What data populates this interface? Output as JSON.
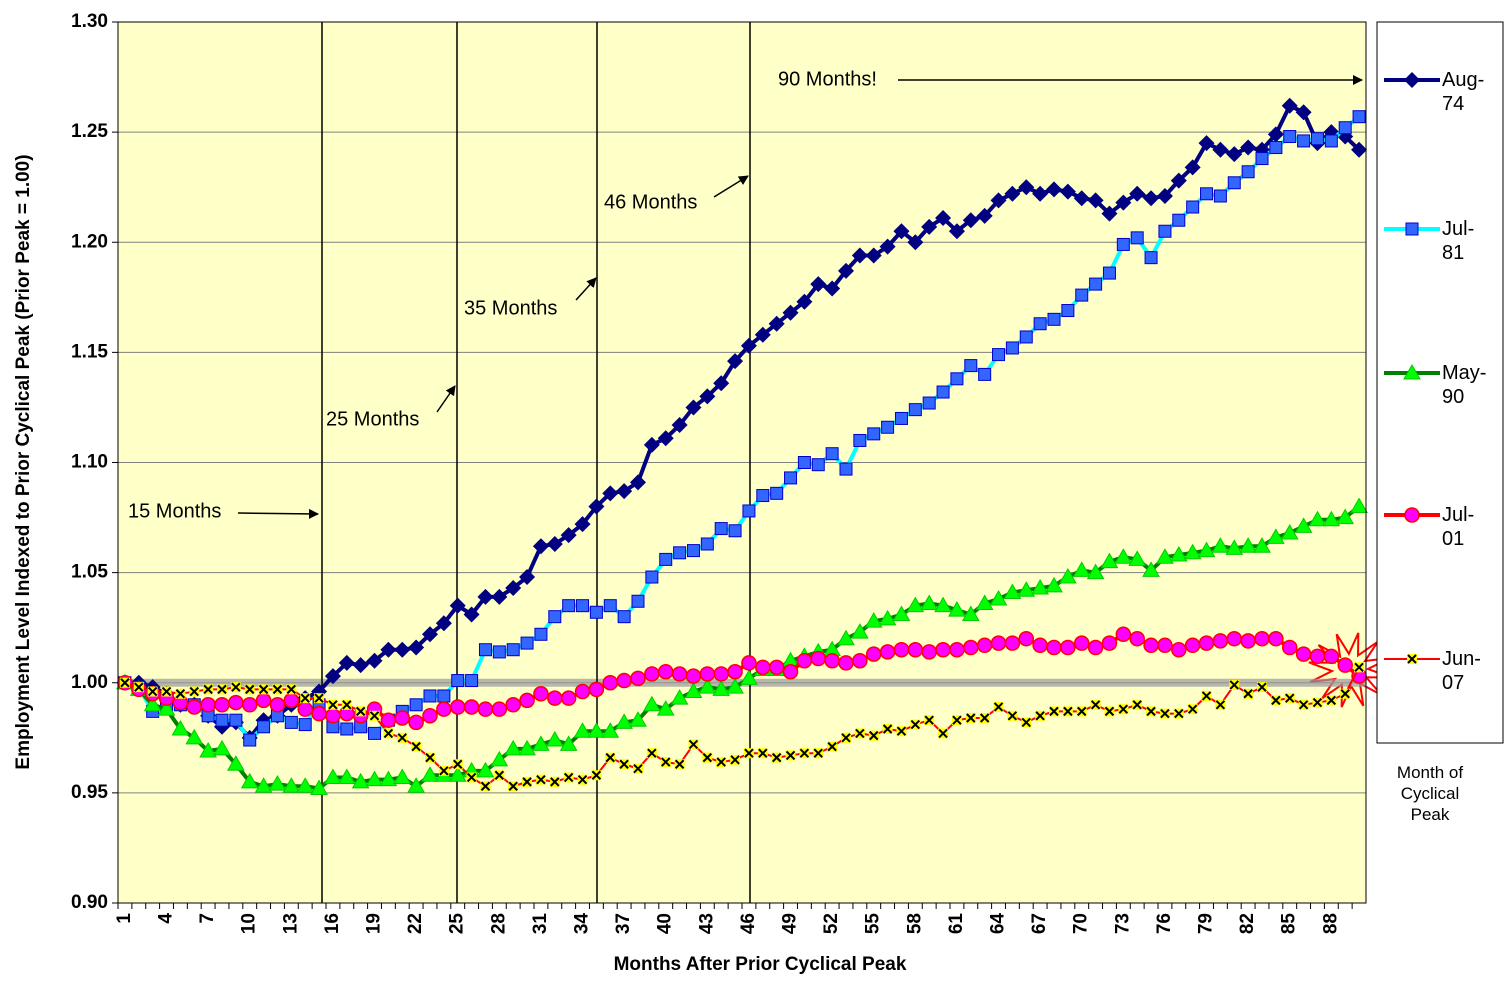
{
  "chart_data": {
    "type": "line",
    "y_label": "Employment Level Indexed to Prior Cyclical Peak (Prior Peak = 1.00)",
    "x_label": "Months After Prior Cyclical Peak",
    "legend_title": "Month of Cyclical Peak",
    "annotations": [
      "15 Months",
      "25 Months",
      "35 Months",
      "46 Months",
      "90 Months!"
    ],
    "categories": [
      1,
      null,
      null,
      4,
      null,
      null,
      7,
      null,
      null,
      10,
      null,
      null,
      13,
      null,
      null,
      16,
      null,
      null,
      19,
      null,
      null,
      22,
      null,
      null,
      25,
      null,
      null,
      28,
      null,
      null,
      31,
      null,
      null,
      34,
      null,
      null,
      37,
      null,
      null,
      40,
      null,
      null,
      43,
      null,
      null,
      46,
      null,
      null,
      49,
      null,
      null,
      52,
      null,
      null,
      55,
      null,
      null,
      58,
      null,
      null,
      61,
      null,
      null,
      64,
      null,
      null,
      67,
      null,
      null,
      70,
      null,
      null,
      73,
      null,
      null,
      76,
      null,
      null,
      79,
      null,
      null,
      82,
      null,
      null,
      85,
      null,
      null,
      88,
      null,
      null
    ],
    "ylim": [
      0.9,
      1.3
    ],
    "yticks": [
      {
        "value": 0.9,
        "label": "0.90"
      },
      0.95,
      {
        "value": 1.0,
        "label": "1.00"
      },
      1.05,
      {
        "value": 1.1,
        "label": "1.10"
      },
      1.15,
      {
        "value": 1.2,
        "label": "1.20"
      },
      1.25,
      {
        "value": 1.3,
        "label": "1.30"
      }
    ],
    "grid": true,
    "reference_line": 1.0,
    "background": "#ffffc8",
    "series": [
      {
        "name": "Aug-74",
        "color": "#000080",
        "marker": "diamond",
        "marker_color": "#000080",
        "line_width": 4,
        "values": [
          1.0,
          1.0,
          0.998,
          0.995,
          0.99,
          0.99,
          0.985,
          0.98,
          0.982,
          0.975,
          0.983,
          0.985,
          0.99,
          0.993,
          0.996,
          1.003,
          1.009,
          1.008,
          1.01,
          1.015,
          1.015,
          1.016,
          1.022,
          1.027,
          1.035,
          1.031,
          1.039,
          1.039,
          1.043,
          1.048,
          1.062,
          1.063,
          1.067,
          1.072,
          1.08,
          1.086,
          1.087,
          1.091,
          1.108,
          1.111,
          1.117,
          1.125,
          1.13,
          1.136,
          1.146,
          1.153,
          1.158,
          1.163,
          1.168,
          1.173,
          1.181,
          1.179,
          1.187,
          1.194,
          1.194,
          1.198,
          1.205,
          1.2,
          1.207,
          1.211,
          1.205,
          1.21,
          1.212,
          1.219,
          1.222,
          1.225,
          1.222,
          1.224,
          1.223,
          1.22,
          1.219,
          1.213,
          1.218,
          1.222,
          1.22,
          1.221,
          1.228,
          1.234,
          1.245,
          1.242,
          1.24,
          1.243,
          1.242,
          1.249,
          1.262,
          1.259,
          1.245,
          1.25,
          1.248,
          1.242
        ]
      },
      {
        "name": "Jul-81",
        "color": "#00ffff",
        "marker": "square",
        "marker_color": "#3366ff",
        "line_width": 4,
        "values": [
          1.0,
          0.998,
          0.987,
          0.99,
          0.99,
          0.99,
          0.985,
          0.983,
          0.983,
          0.974,
          0.98,
          0.985,
          0.982,
          0.981,
          0.99,
          0.98,
          0.979,
          0.98,
          0.977,
          0.983,
          0.987,
          0.99,
          0.994,
          0.994,
          1.001,
          1.001,
          1.015,
          1.014,
          1.015,
          1.018,
          1.022,
          1.03,
          1.035,
          1.035,
          1.032,
          1.035,
          1.03,
          1.037,
          1.048,
          1.056,
          1.059,
          1.06,
          1.063,
          1.07,
          1.069,
          1.078,
          1.085,
          1.086,
          1.093,
          1.1,
          1.099,
          1.104,
          1.097,
          1.11,
          1.113,
          1.116,
          1.12,
          1.124,
          1.127,
          1.132,
          1.138,
          1.144,
          1.14,
          1.149,
          1.152,
          1.157,
          1.163,
          1.165,
          1.169,
          1.176,
          1.181,
          1.186,
          1.199,
          1.202,
          1.193,
          1.205,
          1.21,
          1.216,
          1.222,
          1.221,
          1.227,
          1.232,
          1.238,
          1.243,
          1.248,
          1.246,
          1.247,
          1.246,
          1.252,
          1.257
        ]
      },
      {
        "name": "May-90",
        "color": "#008000",
        "marker": "triangle",
        "marker_color": "#00ff00",
        "line_width": 4,
        "values": [
          1.0,
          0.997,
          0.99,
          0.988,
          0.979,
          0.975,
          0.969,
          0.97,
          0.963,
          0.955,
          0.953,
          0.954,
          0.953,
          0.953,
          0.952,
          0.957,
          0.957,
          0.955,
          0.956,
          0.956,
          0.957,
          0.953,
          0.958,
          0.958,
          0.958,
          0.96,
          0.96,
          0.965,
          0.97,
          0.97,
          0.972,
          0.974,
          0.972,
          0.978,
          0.978,
          0.978,
          0.982,
          0.983,
          0.99,
          0.988,
          0.993,
          0.996,
          0.998,
          0.997,
          0.998,
          1.002,
          1.006,
          1.006,
          1.01,
          1.012,
          1.014,
          1.015,
          1.02,
          1.023,
          1.028,
          1.029,
          1.031,
          1.035,
          1.036,
          1.035,
          1.033,
          1.031,
          1.036,
          1.038,
          1.041,
          1.042,
          1.043,
          1.044,
          1.048,
          1.051,
          1.05,
          1.055,
          1.057,
          1.056,
          1.051,
          1.057,
          1.058,
          1.059,
          1.06,
          1.062,
          1.061,
          1.062,
          1.062,
          1.066,
          1.068,
          1.071,
          1.074,
          1.074,
          1.075,
          1.08
        ]
      },
      {
        "name": "Jul-01",
        "color": "#ff0000",
        "marker": "circle",
        "marker_color": "#ff00ff",
        "line_width": 4,
        "values": [
          1.0,
          0.997,
          0.995,
          0.993,
          0.991,
          0.989,
          0.99,
          0.99,
          0.991,
          0.99,
          0.992,
          0.99,
          0.992,
          0.988,
          0.986,
          0.985,
          0.986,
          0.985,
          0.988,
          0.983,
          0.984,
          0.982,
          0.985,
          0.988,
          0.989,
          0.989,
          0.988,
          0.988,
          0.99,
          0.992,
          0.995,
          0.993,
          0.993,
          0.996,
          0.997,
          1.0,
          1.001,
          1.002,
          1.004,
          1.005,
          1.004,
          1.003,
          1.004,
          1.004,
          1.005,
          1.009,
          1.007,
          1.007,
          1.005,
          1.01,
          1.011,
          1.01,
          1.009,
          1.01,
          1.013,
          1.014,
          1.015,
          1.015,
          1.014,
          1.015,
          1.015,
          1.016,
          1.017,
          1.018,
          1.018,
          1.02,
          1.017,
          1.016,
          1.016,
          1.018,
          1.016,
          1.018,
          1.022,
          1.02,
          1.017,
          1.017,
          1.015,
          1.017,
          1.018,
          1.019,
          1.02,
          1.019,
          1.02,
          1.02,
          1.016,
          1.013,
          1.012,
          1.012,
          1.008,
          1.003
        ]
      },
      {
        "name": "Jun-07",
        "color": "#ff0000",
        "marker": "x",
        "marker_color": "#ffff00",
        "line_width": 2,
        "values": [
          1.0,
          0.998,
          0.996,
          0.996,
          0.995,
          0.996,
          0.997,
          0.997,
          0.998,
          0.997,
          0.997,
          0.997,
          0.997,
          0.993,
          0.993,
          0.99,
          0.99,
          0.987,
          0.985,
          0.977,
          0.975,
          0.971,
          0.966,
          0.96,
          0.963,
          0.957,
          0.953,
          0.958,
          0.953,
          0.955,
          0.956,
          0.955,
          0.957,
          0.956,
          0.958,
          0.966,
          0.963,
          0.961,
          0.968,
          0.964,
          0.963,
          0.972,
          0.966,
          0.964,
          0.965,
          0.968,
          0.968,
          0.966,
          0.967,
          0.968,
          0.968,
          0.971,
          0.975,
          0.977,
          0.976,
          0.979,
          0.978,
          0.981,
          0.983,
          0.977,
          0.983,
          0.984,
          0.984,
          0.989,
          0.985,
          0.982,
          0.985,
          0.987,
          0.987,
          0.987,
          0.99,
          0.987,
          0.988,
          0.99,
          0.987,
          0.986,
          0.986,
          0.988,
          0.994,
          0.99,
          0.999,
          0.995,
          0.998,
          0.992,
          0.993,
          0.99,
          0.991,
          0.992,
          0.995,
          1.007
        ]
      }
    ]
  }
}
